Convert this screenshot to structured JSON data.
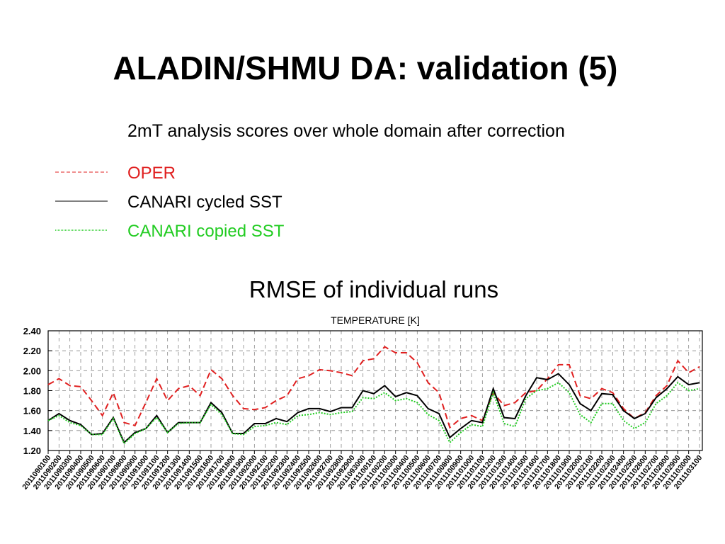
{
  "title": "ALADIN/SHMU DA: validation (5)",
  "subtitle": "2mT analysis scores over whole domain after correction",
  "chart_data": {
    "type": "line",
    "title": "RMSE of individual runs",
    "subtitle": "TEMPERATURE [K]",
    "categories": [
      "2011090100",
      "2011090200",
      "2011090300",
      "2011090400",
      "2011090500",
      "2011090600",
      "2011090700",
      "2011090800",
      "2011090900",
      "2011091000",
      "2011091100",
      "2011091200",
      "2011091300",
      "2011091400",
      "2011091500",
      "2011091600",
      "2011091700",
      "2011091800",
      "2011091900",
      "2011092000",
      "2011092100",
      "2011092200",
      "2011092300",
      "2011092400",
      "2011092500",
      "2011092600",
      "2011092700",
      "2011092800",
      "2011092900",
      "2011093000",
      "2011100100",
      "2011100200",
      "2011100300",
      "2011100400",
      "2011100500",
      "2011100600",
      "2011100700",
      "2011100800",
      "2011100900",
      "2011101000",
      "2011101100",
      "2011101200",
      "2011101300",
      "2011101400",
      "2011101500",
      "2011101600",
      "2011101700",
      "2011101800",
      "2011101900",
      "2011102000",
      "2011102100",
      "2011102200",
      "2011102300",
      "2011102400",
      "2011102500",
      "2011102600",
      "2011102700",
      "2011102800",
      "2011102900",
      "2011103000",
      "2011103100"
    ],
    "series": [
      {
        "name": "OPER",
        "color": "#e02020",
        "style": "dashed",
        "values": [
          1.86,
          1.92,
          1.85,
          1.84,
          1.7,
          1.55,
          1.78,
          1.48,
          1.45,
          1.68,
          1.92,
          1.7,
          1.82,
          1.85,
          1.75,
          2.01,
          1.92,
          1.75,
          1.62,
          1.61,
          1.63,
          1.7,
          1.75,
          1.92,
          1.95,
          2.01,
          2.0,
          1.98,
          1.95,
          2.1,
          2.12,
          2.24,
          2.18,
          2.18,
          2.08,
          1.88,
          1.78,
          1.43,
          1.52,
          1.55,
          1.5,
          1.78,
          1.65,
          1.68,
          1.78,
          1.8,
          1.92,
          2.06,
          2.06,
          1.75,
          1.72,
          1.82,
          1.78,
          1.62,
          1.52,
          1.58,
          1.75,
          1.85,
          2.1,
          1.98,
          2.04
        ]
      },
      {
        "name": "CANARI cycled SST",
        "color": "#000000",
        "style": "solid",
        "values": [
          1.5,
          1.57,
          1.5,
          1.46,
          1.36,
          1.37,
          1.53,
          1.28,
          1.38,
          1.42,
          1.55,
          1.38,
          1.48,
          1.48,
          1.48,
          1.68,
          1.58,
          1.37,
          1.37,
          1.47,
          1.47,
          1.52,
          1.49,
          1.58,
          1.62,
          1.62,
          1.59,
          1.63,
          1.63,
          1.8,
          1.77,
          1.85,
          1.74,
          1.78,
          1.75,
          1.62,
          1.57,
          1.33,
          1.42,
          1.5,
          1.48,
          1.82,
          1.53,
          1.52,
          1.75,
          1.93,
          1.91,
          1.97,
          1.86,
          1.67,
          1.6,
          1.77,
          1.76,
          1.6,
          1.52,
          1.57,
          1.73,
          1.82,
          1.94,
          1.86,
          1.88
        ]
      },
      {
        "name": "CANARI copied SST",
        "color": "#22cc22",
        "style": "dotted",
        "values": [
          1.5,
          1.55,
          1.48,
          1.45,
          1.36,
          1.36,
          1.52,
          1.27,
          1.37,
          1.42,
          1.53,
          1.38,
          1.47,
          1.48,
          1.48,
          1.66,
          1.56,
          1.37,
          1.36,
          1.44,
          1.45,
          1.48,
          1.46,
          1.55,
          1.56,
          1.58,
          1.56,
          1.58,
          1.59,
          1.73,
          1.72,
          1.78,
          1.7,
          1.72,
          1.68,
          1.56,
          1.5,
          1.28,
          1.38,
          1.46,
          1.44,
          1.78,
          1.47,
          1.44,
          1.72,
          1.8,
          1.82,
          1.88,
          1.78,
          1.56,
          1.48,
          1.67,
          1.67,
          1.5,
          1.42,
          1.48,
          1.67,
          1.75,
          1.88,
          1.8,
          1.82
        ]
      }
    ],
    "ylim": [
      1.2,
      2.4
    ],
    "yticks": [
      {
        "value": 1.2,
        "label": "1.20"
      },
      {
        "value": 1.4,
        "label": "1.40"
      },
      {
        "value": 1.6,
        "label": "1.60"
      },
      {
        "value": 1.8,
        "label": "1.80"
      },
      {
        "value": 2.0,
        "label": "2.00"
      },
      {
        "value": 2.2,
        "label": "2.20"
      },
      {
        "value": 2.4,
        "label": "2.40"
      }
    ],
    "grid": true
  }
}
